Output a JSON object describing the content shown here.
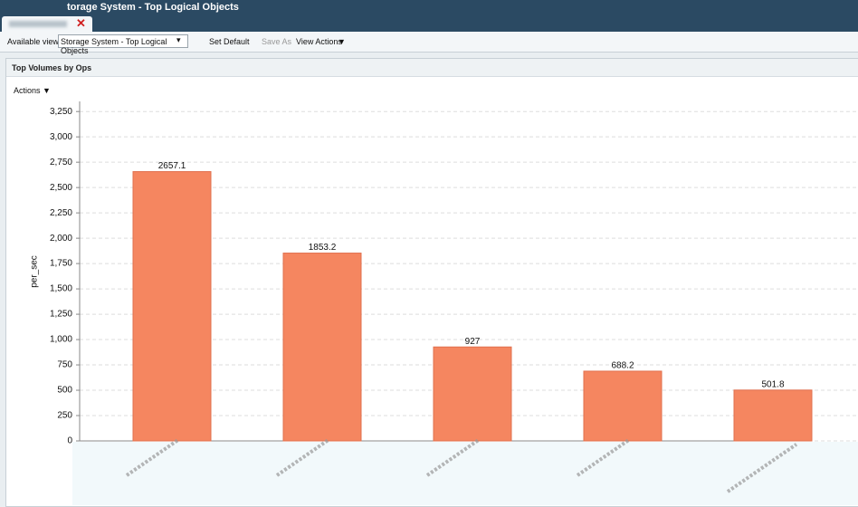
{
  "window": {
    "title": "torage System - Top Logical Objects"
  },
  "toolbar": {
    "views_label": "Available views:",
    "selected_view": "Storage System - Top Logical Objects",
    "set_default": "Set Default",
    "save_as": "Save As",
    "view_actions": "View Actions"
  },
  "panel": {
    "title": "Top Volumes by Ops",
    "actions": "Actions"
  },
  "chart_data": {
    "type": "bar",
    "y_label": "per_sec",
    "categories": [
      null,
      null,
      null,
      null,
      null
    ],
    "values": [
      2657.1,
      1853.2,
      927,
      688.2,
      501.8
    ],
    "color": "#f58660",
    "ylim": [
      0,
      3350
    ],
    "yticks": [
      0,
      250,
      500,
      750,
      {
        "value": 1000,
        "label": "1,000"
      },
      {
        "value": 1250,
        "label": "1,250"
      },
      {
        "value": 1500,
        "label": "1,500"
      },
      {
        "value": 1750,
        "label": "1,750"
      },
      {
        "value": 2000,
        "label": "2,000"
      },
      {
        "value": 2250,
        "label": "2,250"
      },
      {
        "value": 2500,
        "label": "2,500"
      },
      {
        "value": 2750,
        "label": "2,750"
      },
      {
        "value": 3000,
        "label": "3,000"
      },
      {
        "value": 3250,
        "label": "3,250"
      }
    ],
    "grid": true
  }
}
